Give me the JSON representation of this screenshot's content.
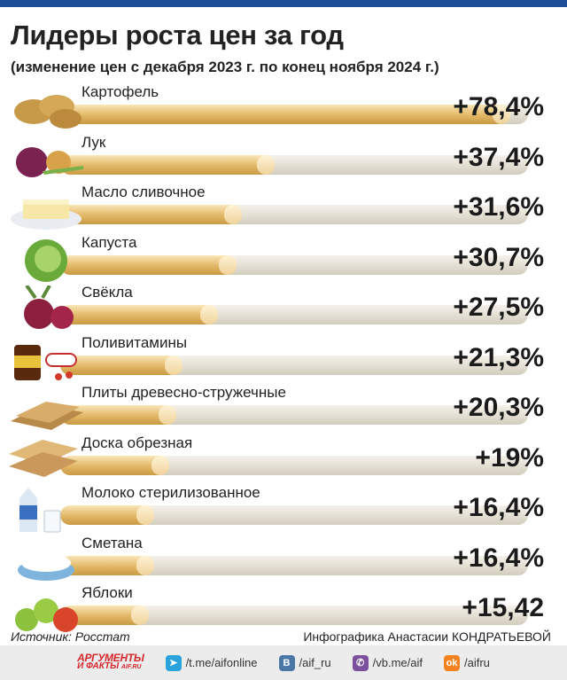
{
  "header": {
    "title": "Лидеры роста цен за год",
    "subtitle": "(изменение цен с декабря 2023 г. по конец ноября 2024 г.)"
  },
  "chart_data": {
    "type": "bar",
    "orientation": "horizontal",
    "title": "Лидеры роста цен за год",
    "subtitle": "(изменение цен с декабря 2023 г. по конец ноября 2024 г.)",
    "unit": "%",
    "xlim": [
      0,
      80
    ],
    "categories": [
      "Картофель",
      "Лук",
      "Масло сливочное",
      "Капуста",
      "Свёкла",
      "Поливитамины",
      "Плиты древесно-стружечные",
      "Доска обрезная",
      "Молоко стерилизованное",
      "Сметана",
      "Яблоки"
    ],
    "values": [
      78.4,
      37.4,
      31.6,
      30.7,
      27.5,
      21.3,
      20.3,
      19,
      16.4,
      16.4,
      15.42
    ],
    "value_labels": [
      "+78,4%",
      "+37,4%",
      "+31,6%",
      "+30,7%",
      "+27,5%",
      "+21,3%",
      "+20,3%",
      "+19%",
      "+16,4%",
      "+16,4%",
      "+15,42"
    ],
    "icons": [
      "potato-icon",
      "onion-icon",
      "butter-icon",
      "cabbage-icon",
      "beet-icon",
      "vitamins-icon",
      "chipboard-icon",
      "plank-icon",
      "milk-icon",
      "sour-cream-icon",
      "apples-icon"
    ]
  },
  "footer": {
    "source": "Источник: Росстат",
    "credit": "Инфографика Анастасии КОНДРАТЬЕВОЙ",
    "logo_line1": "АРГУМЕНТЫ",
    "logo_line2": "И ФАКТЫ",
    "logo_domain": "AIF.RU",
    "links": [
      {
        "icon": "telegram-icon",
        "text": "/t.me/aifonline",
        "color": "#2aa3dc"
      },
      {
        "icon": "vk-icon",
        "text": "/aif_ru",
        "color": "#4a76a8"
      },
      {
        "icon": "viber-icon",
        "text": "/vb.me/aif",
        "color": "#7b519d"
      },
      {
        "icon": "ok-icon",
        "text": "/aifru",
        "color": "#f58220"
      }
    ]
  },
  "colors": {
    "header_band": "#1f4e98",
    "bar_fill": "#e2b765",
    "bar_track": "#e4dfd3"
  }
}
